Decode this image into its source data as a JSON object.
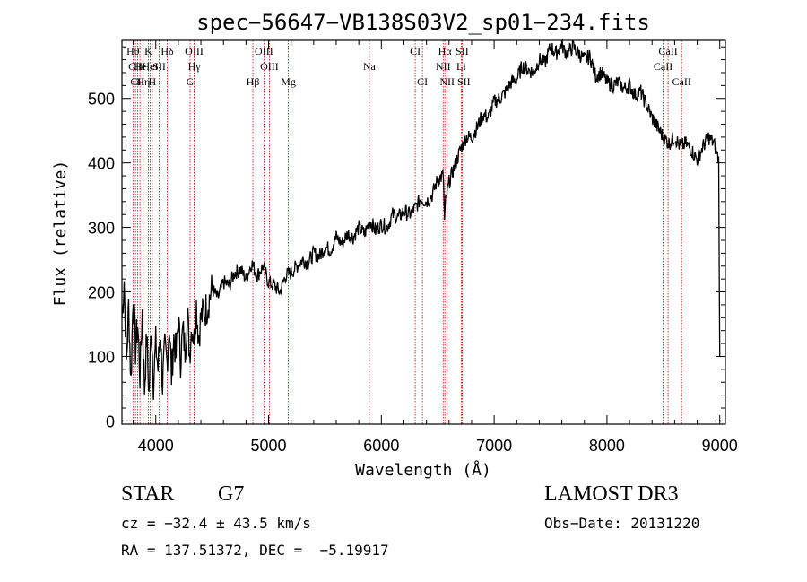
{
  "chart_data": {
    "type": "line",
    "title": "spec−56647−VB138S03V2_sp01−234.fits",
    "xlabel": "Wavelength (Å)",
    "ylabel": "Flux (relative)",
    "xlim": [
      3700,
      9050
    ],
    "ylim": [
      -5,
      590
    ],
    "xticks": [
      4000,
      5000,
      6000,
      7000,
      8000,
      9000
    ],
    "yticks": [
      0,
      100,
      200,
      300,
      400,
      500
    ],
    "series": [
      {
        "name": "flux",
        "x": [
          3700,
          3720,
          3740,
          3760,
          3780,
          3800,
          3820,
          3840,
          3860,
          3880,
          3900,
          3920,
          3940,
          3960,
          3980,
          4000,
          4020,
          4040,
          4060,
          4080,
          4100,
          4120,
          4140,
          4160,
          4180,
          4200,
          4220,
          4240,
          4260,
          4280,
          4300,
          4320,
          4340,
          4360,
          4380,
          4400,
          4450,
          4500,
          4550,
          4600,
          4650,
          4700,
          4750,
          4800,
          4850,
          4900,
          4950,
          5000,
          5050,
          5100,
          5150,
          5200,
          5250,
          5300,
          5350,
          5400,
          5450,
          5500,
          5550,
          5600,
          5650,
          5700,
          5750,
          5800,
          5850,
          5900,
          5950,
          6000,
          6050,
          6100,
          6150,
          6200,
          6250,
          6300,
          6350,
          6400,
          6450,
          6500,
          6550,
          6560,
          6570,
          6600,
          6650,
          6700,
          6750,
          6800,
          6850,
          6900,
          6950,
          7000,
          7050,
          7100,
          7150,
          7200,
          7250,
          7300,
          7350,
          7400,
          7450,
          7500,
          7550,
          7600,
          7620,
          7650,
          7700,
          7750,
          7800,
          7850,
          7900,
          7950,
          8000,
          8050,
          8100,
          8150,
          8200,
          8250,
          8300,
          8350,
          8400,
          8450,
          8500,
          8550,
          8600,
          8650,
          8700,
          8750,
          8800,
          8850,
          8900,
          8950,
          8990,
          9000
        ],
        "y": [
          160,
          220,
          90,
          180,
          60,
          200,
          110,
          150,
          70,
          170,
          50,
          130,
          40,
          150,
          60,
          120,
          80,
          140,
          55,
          110,
          90,
          150,
          70,
          130,
          100,
          160,
          95,
          140,
          110,
          170,
          105,
          150,
          125,
          180,
          130,
          160,
          175,
          205,
          190,
          215,
          210,
          230,
          235,
          220,
          245,
          225,
          240,
          215,
          210,
          200,
          225,
          230,
          240,
          250,
          245,
          260,
          255,
          270,
          265,
          285,
          275,
          290,
          285,
          300,
          290,
          310,
          295,
          305,
          300,
          320,
          315,
          325,
          320,
          330,
          345,
          340,
          350,
          375,
          380,
          310,
          340,
          370,
          395,
          420,
          440,
          440,
          455,
          475,
          470,
          495,
          500,
          510,
          525,
          530,
          550,
          545,
          540,
          560,
          555,
          580,
          570,
          585,
          575,
          570,
          580,
          570,
          560,
          565,
          535,
          540,
          525,
          520,
          525,
          515,
          520,
          505,
          510,
          490,
          470,
          455,
          440,
          430,
          440,
          425,
          430,
          420,
          405,
          425,
          440,
          430,
          405,
          100
        ]
      }
    ],
    "lines": [
      {
        "label": "Hθ",
        "x": 3798,
        "row": 1
      },
      {
        "label": "CII",
        "x": 3820,
        "row": 2
      },
      {
        "label": "CII",
        "x": 3838,
        "row": 3
      },
      {
        "label": "He",
        "x": 3860,
        "row": 2
      },
      {
        "label": "Hη",
        "x": 3889,
        "row": 3
      },
      {
        "label": "K",
        "x": 3934,
        "row": 1
      },
      {
        "label": "HeI",
        "x": 3950,
        "row": 2
      },
      {
        "label": "H",
        "x": 3969,
        "row": 3
      },
      {
        "label": "SII",
        "x": 4030,
        "row": 2
      },
      {
        "label": "Hδ",
        "x": 4102,
        "row": 1
      },
      {
        "label": "OIII",
        "x": 4340,
        "row": 1
      },
      {
        "label": "Hγ",
        "x": 4341,
        "row": 2
      },
      {
        "label": "G",
        "x": 4304,
        "row": 3
      },
      {
        "label": "Hβ",
        "x": 4861,
        "row": 3
      },
      {
        "label": "OIII",
        "x": 4959,
        "row": 1
      },
      {
        "label": "OIII",
        "x": 5007,
        "row": 2
      },
      {
        "label": "Mg",
        "x": 5175,
        "row": 3
      },
      {
        "label": "Na",
        "x": 5893,
        "row": 2
      },
      {
        "label": "CI",
        "x": 6300,
        "row": 1
      },
      {
        "label": "CI",
        "x": 6364,
        "row": 3
      },
      {
        "label": "Hα",
        "x": 6563,
        "row": 1
      },
      {
        "label": "NII",
        "x": 6548,
        "row": 2
      },
      {
        "label": "NII",
        "x": 6583,
        "row": 3
      },
      {
        "label": "SII",
        "x": 6716,
        "row": 1
      },
      {
        "label": "Li",
        "x": 6708,
        "row": 2
      },
      {
        "label": "SII",
        "x": 6731,
        "row": 3
      },
      {
        "label": "CaII",
        "x": 8542,
        "row": 1
      },
      {
        "label": "CaII",
        "x": 8498,
        "row": 2
      },
      {
        "label": "CaII",
        "x": 8662,
        "row": 3
      }
    ]
  },
  "info": {
    "object_class": "STAR",
    "subclass": "G7",
    "survey": "LAMOST DR3",
    "cz_text": "cz = −32.4 ± 43.5 km/s",
    "obs_date_text": "Obs−Date: 20131220",
    "coords_text": "RA = 137.51372, DEC =  −5.19917"
  },
  "colors": {
    "line_color": "#cc0000",
    "axis": "#000000"
  }
}
